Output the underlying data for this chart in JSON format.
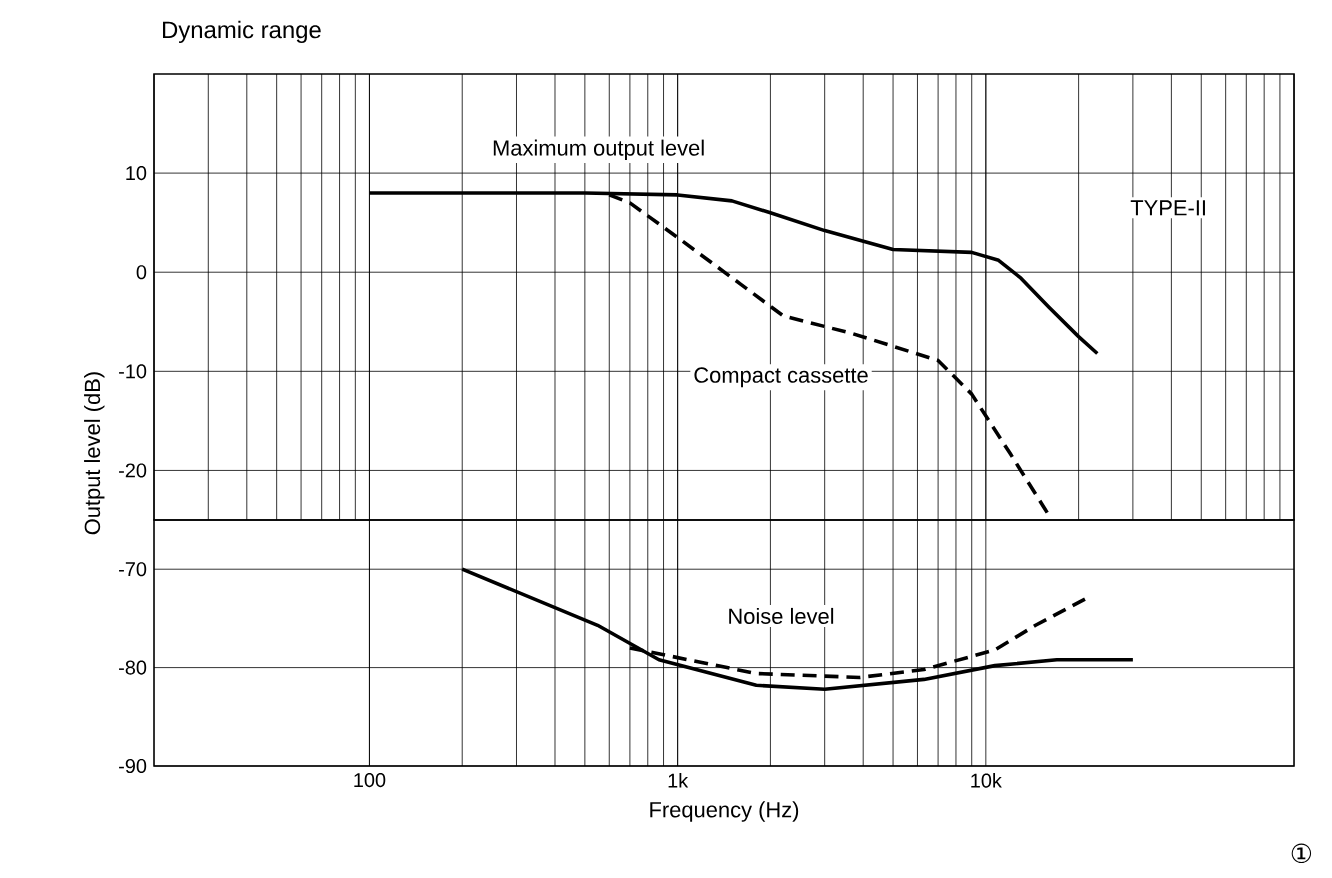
{
  "chart_data": [
    {
      "type": "line",
      "title": "Dynamic range",
      "ylabel": "Output level (dB)",
      "log": "x",
      "grid": true,
      "tick_labels": "y",
      "xlim": [
        20,
        100000
      ],
      "ylim": [
        -25,
        20
      ],
      "yticks": [
        -20,
        -10,
        0,
        10
      ],
      "series": [
        {
          "color": "#000000",
          "line_style": "solid",
          "x": [
            100,
            500,
            1000,
            1500,
            2000,
            3000,
            5000,
            9000,
            11000,
            13000,
            16000,
            20000,
            23000
          ],
          "values": [
            8,
            8,
            7.8,
            7.2,
            6,
            4.2,
            2.3,
            2,
            1.2,
            -0.6,
            -3.5,
            -6.5,
            -8.2
          ]
        },
        {
          "color": "#000000",
          "line_style": "dashed",
          "x": [
            600,
            700,
            1000,
            1600,
            2200,
            3700,
            7000,
            9000,
            12000,
            16000
          ],
          "values": [
            7.8,
            7,
            3.5,
            -1.2,
            -4.4,
            -6.2,
            -8.9,
            -12.3,
            -18.3,
            -24.5
          ]
        }
      ],
      "annotations": [
        "Maximum output level",
        "TYPE-II",
        "Compact cassette"
      ]
    },
    {
      "type": "line",
      "xlabel": "Frequency (Hz)",
      "log": "x",
      "grid": true,
      "xlim": [
        20,
        100000
      ],
      "xticks": [
        100,
        {
          "value": 1000,
          "label": "1k"
        },
        {
          "value": 10000,
          "label": "10k"
        }
      ],
      "ylim": [
        -90,
        -65
      ],
      "yticks": [
        -90,
        -80,
        -70
      ],
      "series": [
        {
          "color": "#000000",
          "line_style": "solid",
          "x": [
            200,
            550,
            870,
            1800,
            3000,
            6300,
            10700,
            17000,
            30000
          ],
          "values": [
            -70,
            -75.7,
            -79.2,
            -81.8,
            -82.2,
            -81.2,
            -79.8,
            -79.2,
            -79.2
          ]
        },
        {
          "color": "#000000",
          "line_style": "dashed",
          "x": [
            700,
            1800,
            3900,
            6300,
            10700,
            14500,
            22000
          ],
          "values": [
            -78,
            -80.6,
            -81,
            -80.2,
            -78.2,
            -75.7,
            -72.7
          ]
        }
      ],
      "annotations": [
        "Noise level",
        "①"
      ]
    }
  ]
}
